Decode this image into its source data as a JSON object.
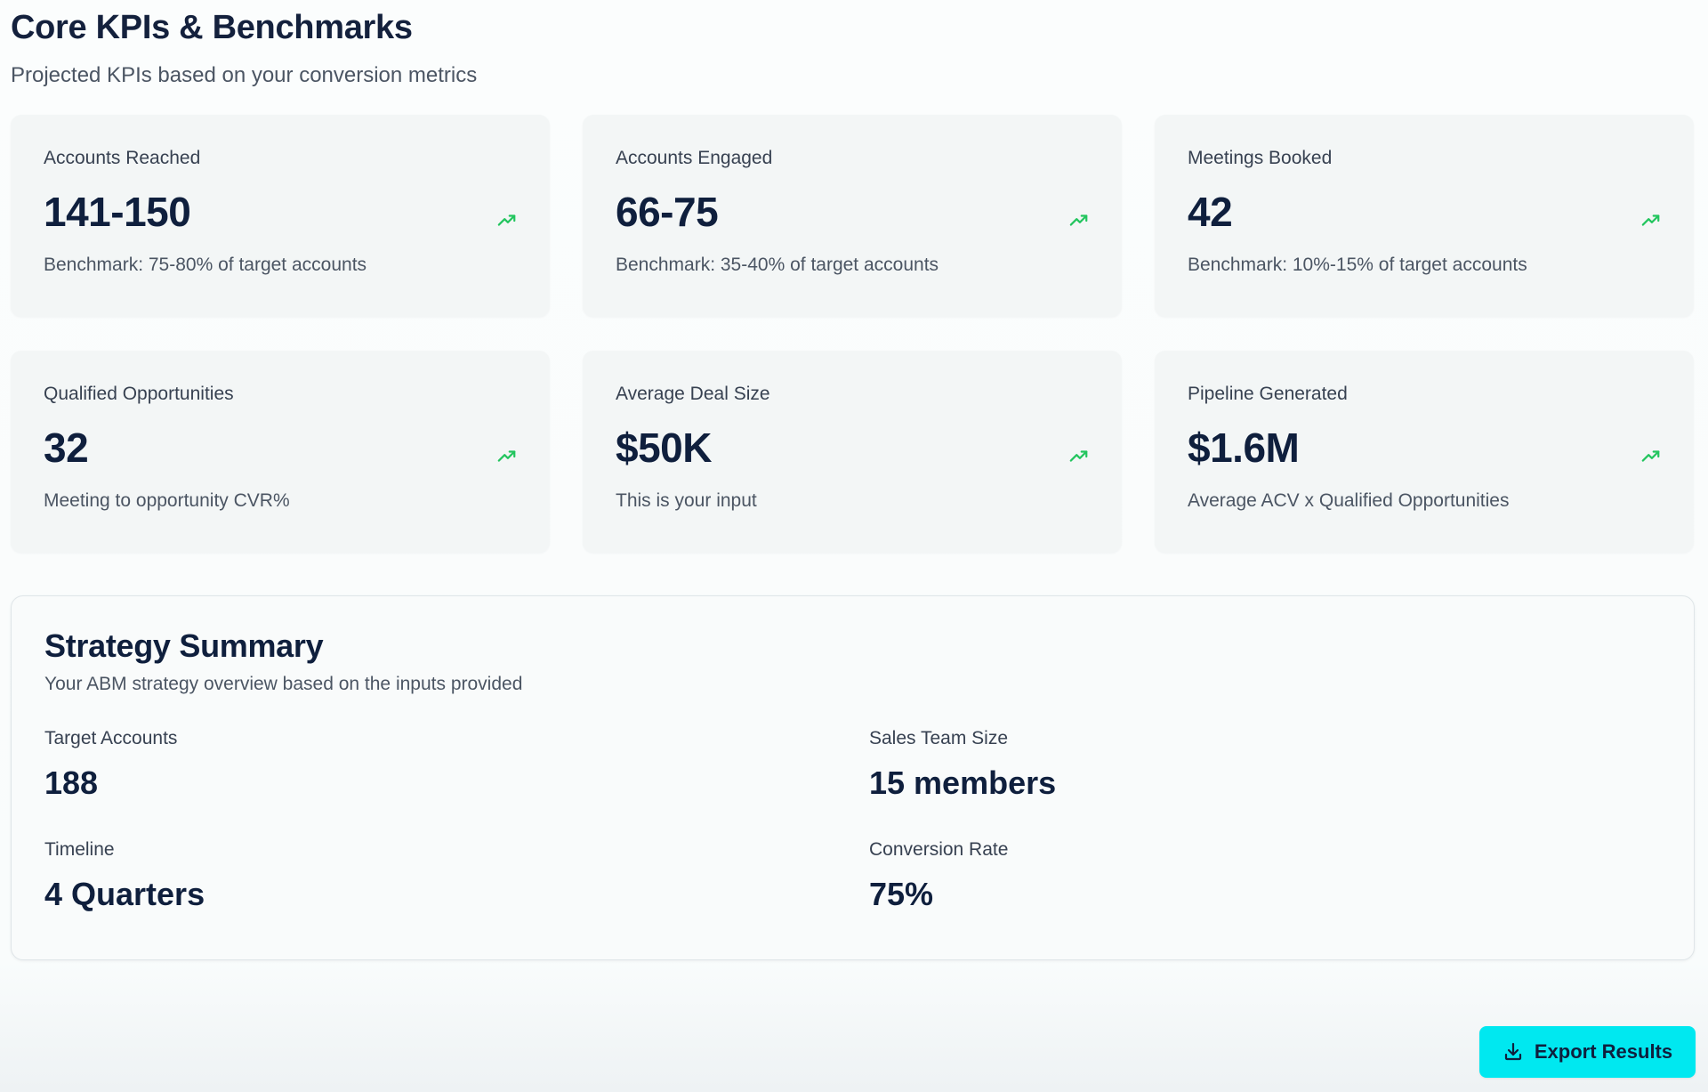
{
  "header": {
    "title": "Core KPIs & Benchmarks",
    "subtitle": "Projected KPIs based on your conversion metrics"
  },
  "kpis": [
    {
      "label": "Accounts Reached",
      "value": "141-150",
      "note": "Benchmark: 75-80% of target accounts",
      "icon": "trending-up-icon"
    },
    {
      "label": "Accounts Engaged",
      "value": "66-75",
      "note": "Benchmark: 35-40% of target accounts",
      "icon": "trending-up-icon"
    },
    {
      "label": "Meetings Booked",
      "value": "42",
      "note": "Benchmark: 10%-15% of target accounts",
      "icon": "trending-up-icon"
    },
    {
      "label": "Qualified Opportunities",
      "value": "32",
      "note": "Meeting to opportunity CVR%",
      "icon": "trending-up-icon"
    },
    {
      "label": "Average Deal Size",
      "value": "$50K",
      "note": "This is your input",
      "icon": "trending-up-icon"
    },
    {
      "label": "Pipeline Generated",
      "value": "$1.6M",
      "note": "Average ACV x Qualified Opportunities",
      "icon": "trending-up-icon"
    }
  ],
  "summary": {
    "title": "Strategy Summary",
    "subtitle": "Your ABM strategy overview based on the inputs provided",
    "items": [
      {
        "label": "Target Accounts",
        "value": "188"
      },
      {
        "label": "Sales Team Size",
        "value": "15 members"
      },
      {
        "label": "Timeline",
        "value": "4 Quarters"
      },
      {
        "label": "Conversion Rate",
        "value": "75%"
      }
    ]
  },
  "export": {
    "label": "Export Results",
    "icon": "download-icon"
  },
  "colors": {
    "accent": "#00e8f0",
    "trend": "#22c55e",
    "heading": "#0f1f3d",
    "card_bg": "#f3f6f6"
  }
}
